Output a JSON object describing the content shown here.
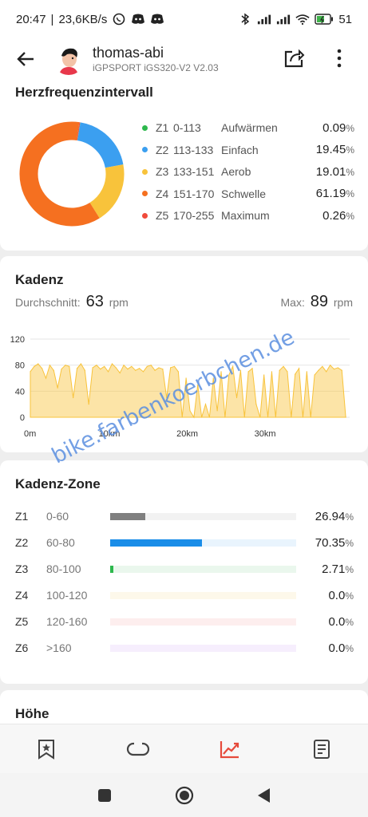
{
  "status_bar": {
    "time": "20:47",
    "speed": "23,6KB/s",
    "battery": "51"
  },
  "header": {
    "user_name": "thomas-abi",
    "device": "iGPSPORT iGS320-V2  V2.03"
  },
  "heart_rate": {
    "title": "Herzfrequenzintervall",
    "zones": [
      {
        "zone": "Z1",
        "range": "0-113",
        "name": "Aufwärmen",
        "pct": "0.09",
        "value": 0.09,
        "color": "#2db84d"
      },
      {
        "zone": "Z2",
        "range": "113-133",
        "name": "Einfach",
        "pct": "19.45",
        "value": 19.45,
        "color": "#3b9ff0"
      },
      {
        "zone": "Z3",
        "range": "133-151",
        "name": "Aerob",
        "pct": "19.01",
        "value": 19.01,
        "color": "#f8c33b"
      },
      {
        "zone": "Z4",
        "range": "151-170",
        "name": "Schwelle",
        "pct": "61.19",
        "value": 61.19,
        "color": "#f57020"
      },
      {
        "zone": "Z5",
        "range": "170-255",
        "name": "Maximum",
        "pct": "0.26",
        "value": 0.26,
        "color": "#f04a3b"
      }
    ],
    "pct_sign": "%"
  },
  "cadence": {
    "title": "Kadenz",
    "avg_label": "Durchschnitt:",
    "avg_value": "63",
    "unit": "rpm",
    "max_label": "Max:",
    "max_value": "89",
    "chart_data": {
      "type": "area",
      "title": "",
      "xlabel": "",
      "ylabel": "",
      "x_ticks": [
        "0m",
        "10km",
        "20km",
        "30km"
      ],
      "x_tick_values": [
        0,
        10,
        20,
        30
      ],
      "xlim": [
        0,
        41
      ],
      "y_ticks": [
        "120",
        "80",
        "40",
        "0"
      ],
      "y_tick_values": [
        120,
        80,
        40,
        0
      ],
      "ylim": [
        0,
        120
      ],
      "grid": true,
      "color": "#f8c33b",
      "x": [
        0,
        0.5,
        1,
        1.5,
        2,
        2.5,
        3,
        3.5,
        4,
        4.5,
        5,
        5.5,
        6,
        6.5,
        7,
        7.5,
        8,
        8.5,
        9,
        9.5,
        10,
        10.5,
        11,
        11.5,
        12,
        12.5,
        13,
        13.5,
        14,
        14.5,
        15,
        15.5,
        16,
        16.5,
        17,
        17.5,
        18,
        18.5,
        19,
        19.5,
        20,
        20.5,
        21,
        21.5,
        22,
        22.5,
        23,
        23.5,
        24,
        24.5,
        25,
        25.5,
        26,
        26.5,
        27,
        27.5,
        28,
        28.5,
        29,
        29.5,
        30,
        30.5,
        31,
        31.5,
        32,
        32.5,
        33,
        33.5,
        34,
        34.5,
        35,
        35.5,
        36,
        36.5,
        37,
        37.5,
        38,
        38.5,
        39,
        39.5,
        40,
        40.5
      ],
      "values": [
        70,
        78,
        82,
        75,
        60,
        80,
        72,
        45,
        74,
        80,
        78,
        30,
        75,
        82,
        72,
        20,
        76,
        80,
        74,
        78,
        70,
        82,
        76,
        68,
        80,
        74,
        78,
        72,
        75,
        70,
        78,
        80,
        72,
        76,
        74,
        30,
        76,
        78,
        70,
        0,
        60,
        10,
        0,
        50,
        0,
        20,
        0,
        60,
        10,
        70,
        0,
        65,
        78,
        30,
        72,
        0,
        70,
        75,
        20,
        0,
        65,
        0,
        70,
        0,
        72,
        78,
        70,
        0,
        66,
        75,
        0,
        70,
        0,
        65,
        72,
        78,
        70,
        80,
        74,
        76,
        72,
        0
      ]
    }
  },
  "cadence_zone": {
    "title": "Kadenz-Zone",
    "zones": [
      {
        "zone": "Z1",
        "range": "0-60",
        "pct": "26.94",
        "value": 26.94,
        "color": "#808080",
        "track": "#f2f2f2"
      },
      {
        "zone": "Z2",
        "range": "60-80",
        "pct": "70.35",
        "value": 70.35,
        "color": "#1a8de8",
        "track": "#e9f4fd"
      },
      {
        "zone": "Z3",
        "range": "80-100",
        "pct": "2.71",
        "value": 2.71,
        "color": "#2db84d",
        "track": "#eaf7ed"
      },
      {
        "zone": "Z4",
        "range": "100-120",
        "pct": "0.0",
        "value": 0,
        "color": "#f8c33b",
        "track": "#fdf8ea"
      },
      {
        "zone": "Z5",
        "range": "120-160",
        "pct": "0.0",
        "value": 0,
        "color": "#f04a3b",
        "track": "#fdeeee"
      },
      {
        "zone": "Z6",
        "range": ">160",
        "pct": "0.0",
        "value": 0,
        "color": "#b77ee8",
        "track": "#f6eefd"
      }
    ]
  },
  "hoehe": {
    "title": "Höhe"
  },
  "watermark": "bike.farbenkoerbchen.de",
  "nav": {
    "items": [
      "bookmark-icon",
      "loop-icon",
      "chart-icon",
      "document-icon"
    ],
    "active_color": "#e64a3b"
  }
}
